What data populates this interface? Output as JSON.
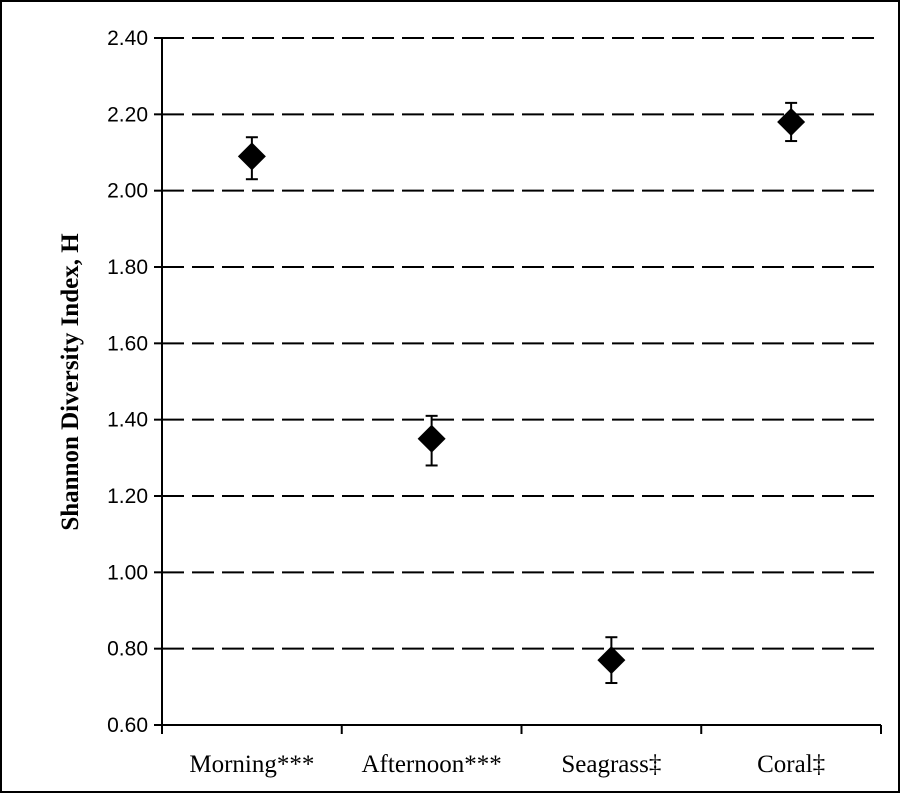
{
  "chart_data": {
    "type": "scatter",
    "title": "",
    "xlabel": "",
    "ylabel": "Shannon Diversity Index, H",
    "categories": [
      "Morning***",
      "Afternoon***",
      "Seagrass‡",
      "Coral‡"
    ],
    "series": [
      {
        "values": [
          2.09,
          1.35,
          0.77,
          2.18
        ],
        "error_low": [
          2.03,
          1.28,
          0.71,
          2.13
        ],
        "error_high": [
          2.14,
          1.41,
          0.83,
          2.23
        ]
      }
    ],
    "ylim": [
      0.6,
      2.4
    ],
    "yticks": [
      "0.60",
      "0.80",
      "1.00",
      "1.20",
      "1.40",
      "1.60",
      "1.80",
      "2.00",
      "2.20",
      "2.40"
    ],
    "grid": "horizontal dashed",
    "marker": "diamond",
    "colors": {
      "marker": "#000000",
      "grid": "#000000",
      "axis": "#000000",
      "background": "#ffffff"
    }
  }
}
